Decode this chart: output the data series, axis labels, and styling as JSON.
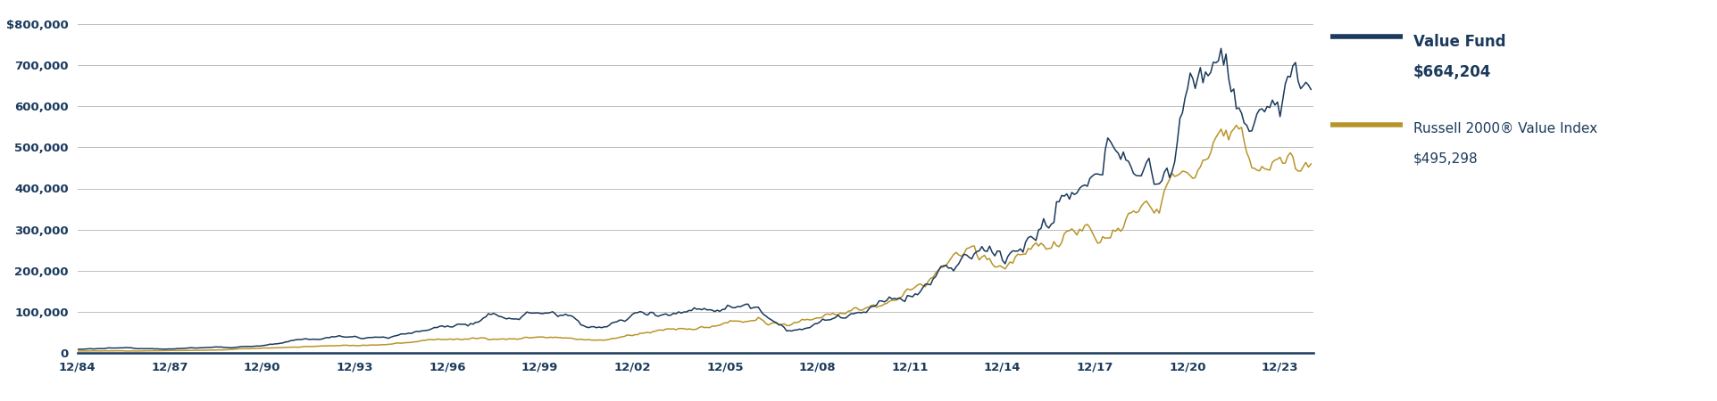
{
  "fund_color": "#1b3a5c",
  "index_color": "#b8952a",
  "background_color": "#ffffff",
  "plot_bg_color": "#ffffff",
  "grid_color": "#c0c0c0",
  "tick_label_color": "#1b3a5c",
  "legend_title1": "Value Fund",
  "legend_val1": "$664,204",
  "legend_title2": "Russell 2000® Value Index",
  "legend_val2": "$495,298",
  "ylim": [
    0,
    800000
  ],
  "yticks": [
    0,
    100000,
    200000,
    300000,
    400000,
    500000,
    600000,
    700000,
    800000
  ],
  "ytick_labels": [
    "0",
    "100,000",
    "200,000",
    "300,000",
    "400,000",
    "500,000",
    "600,000",
    "700,000",
    "$800,000"
  ],
  "xtick_labels": [
    "12/84",
    "12/87",
    "12/90",
    "12/93",
    "12/96",
    "12/99",
    "12/02",
    "12/05",
    "12/08",
    "12/11",
    "12/14",
    "12/17",
    "12/20",
    "12/23"
  ],
  "xtick_years": [
    1984,
    1987,
    1990,
    1993,
    1996,
    1999,
    2002,
    2005,
    2008,
    2011,
    2014,
    2017,
    2020,
    2023
  ],
  "line_width": 1.1
}
